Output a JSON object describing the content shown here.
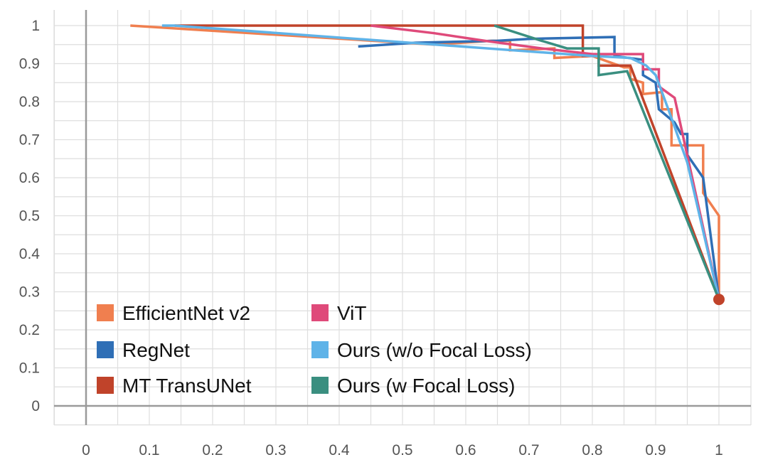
{
  "chart_data": {
    "type": "line",
    "title": "",
    "xlabel": "",
    "ylabel": "",
    "xlim": [
      0,
      1
    ],
    "ylim": [
      0,
      1
    ],
    "grid": true,
    "legend_position": "bottom-left",
    "x_ticks": [
      "0",
      "0.1",
      "0.2",
      "0.3",
      "0.4",
      "0.5",
      "0.6",
      "0.7",
      "0.8",
      "0.9",
      "1"
    ],
    "y_ticks": [
      "0",
      "0.1",
      "0.2",
      "0.3",
      "0.4",
      "0.5",
      "0.6",
      "0.7",
      "0.8",
      "0.9",
      "1"
    ],
    "series": [
      {
        "name": "EfficientNet v2",
        "color": "#f07f4f",
        "points": [
          [
            0.07,
            1.0
          ],
          [
            0.55,
            0.95
          ],
          [
            0.64,
            0.96
          ],
          [
            0.67,
            0.96
          ],
          [
            0.67,
            0.935
          ],
          [
            0.74,
            0.94
          ],
          [
            0.74,
            0.915
          ],
          [
            0.8,
            0.92
          ],
          [
            0.85,
            0.89
          ],
          [
            0.86,
            0.89
          ],
          [
            0.86,
            0.86
          ],
          [
            0.88,
            0.85
          ],
          [
            0.88,
            0.82
          ],
          [
            0.91,
            0.825
          ],
          [
            0.91,
            0.78
          ],
          [
            0.925,
            0.78
          ],
          [
            0.925,
            0.685
          ],
          [
            0.975,
            0.685
          ],
          [
            0.975,
            0.56
          ],
          [
            1.0,
            0.5
          ],
          [
            1.0,
            0.28
          ]
        ]
      },
      {
        "name": "RegNet",
        "color": "#2f6fb6",
        "points": [
          [
            0.43,
            0.945
          ],
          [
            0.52,
            0.955
          ],
          [
            0.65,
            0.96
          ],
          [
            0.7,
            0.965
          ],
          [
            0.835,
            0.97
          ],
          [
            0.835,
            0.92
          ],
          [
            0.88,
            0.91
          ],
          [
            0.88,
            0.87
          ],
          [
            0.9,
            0.85
          ],
          [
            0.905,
            0.78
          ],
          [
            0.93,
            0.745
          ],
          [
            0.94,
            0.715
          ],
          [
            0.95,
            0.715
          ],
          [
            0.95,
            0.66
          ],
          [
            0.975,
            0.6
          ],
          [
            1.0,
            0.28
          ]
        ]
      },
      {
        "name": "MT TransUNet",
        "color": "#c0432a",
        "points": [
          [
            0.14,
            1.0
          ],
          [
            0.785,
            1.0
          ],
          [
            0.785,
            0.92
          ],
          [
            0.81,
            0.92
          ],
          [
            0.81,
            0.895
          ],
          [
            0.86,
            0.895
          ],
          [
            1.0,
            0.28
          ]
        ]
      },
      {
        "name": "ViT",
        "color": "#df4a7a",
        "points": [
          [
            0.45,
            1.0
          ],
          [
            0.55,
            0.98
          ],
          [
            0.63,
            0.96
          ],
          [
            0.72,
            0.94
          ],
          [
            0.8,
            0.925
          ],
          [
            0.88,
            0.925
          ],
          [
            0.88,
            0.885
          ],
          [
            0.905,
            0.885
          ],
          [
            0.905,
            0.84
          ],
          [
            0.93,
            0.81
          ],
          [
            1.0,
            0.28
          ]
        ]
      },
      {
        "name": "Ours (w/o Focal Loss)",
        "color": "#5fb3e8",
        "points": [
          [
            0.12,
            1.0
          ],
          [
            0.14,
            1.0
          ],
          [
            0.8,
            0.92
          ],
          [
            0.86,
            0.915
          ],
          [
            0.885,
            0.895
          ],
          [
            0.9,
            0.87
          ],
          [
            0.92,
            0.78
          ],
          [
            0.95,
            0.64
          ],
          [
            1.0,
            0.28
          ]
        ]
      },
      {
        "name": "Ours (w Focal Loss)",
        "color": "#3a8f80",
        "points": [
          [
            0.645,
            1.0
          ],
          [
            0.72,
            0.96
          ],
          [
            0.76,
            0.94
          ],
          [
            0.81,
            0.94
          ],
          [
            0.81,
            0.87
          ],
          [
            0.855,
            0.88
          ],
          [
            1.0,
            0.28
          ]
        ]
      }
    ],
    "end_marker": {
      "x": 1.0,
      "y": 0.28,
      "color": "#c0432a"
    }
  },
  "legend": [
    {
      "label": "EfficientNet v2",
      "color": "#f07f4f"
    },
    {
      "label": "ViT",
      "color": "#df4a7a"
    },
    {
      "label": "RegNet",
      "color": "#2f6fb6"
    },
    {
      "label": "Ours (w/o Focal Loss)",
      "color": "#5fb3e8"
    },
    {
      "label": "MT TransUNet",
      "color": "#c0432a"
    },
    {
      "label": "Ours (w Focal Loss)",
      "color": "#3a8f80"
    }
  ]
}
